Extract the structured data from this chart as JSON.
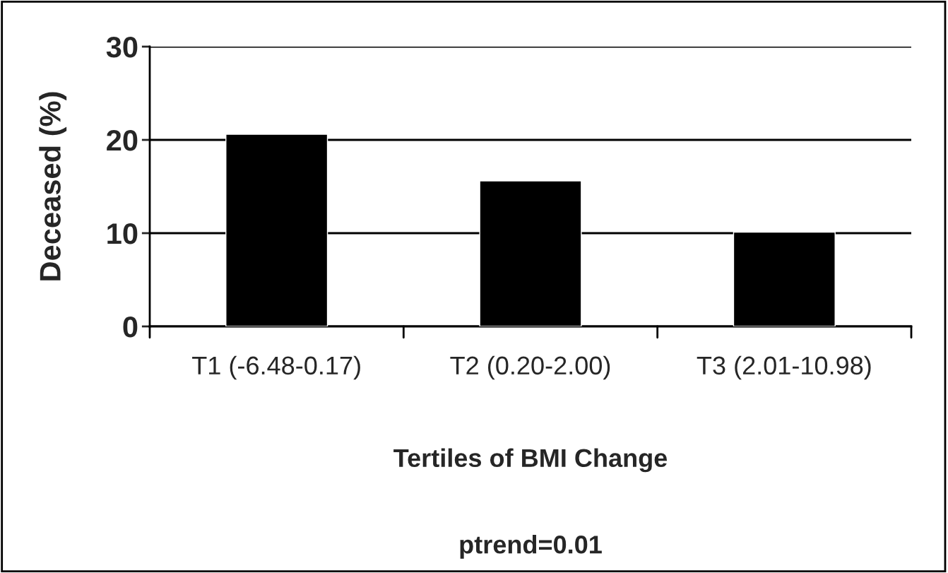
{
  "chart_data": {
    "type": "bar",
    "categories": [
      "T1 (-6.48-0.17)",
      "T2 (0.20-2.00)",
      "T3 (2.01-10.98)"
    ],
    "values": [
      20.6,
      15.6,
      10.1
    ],
    "color": "#000000",
    "ylabel": "Deceased (%)",
    "xlabel": "Tertiles of BMI Change",
    "annotations": [
      "ptrend=0.01"
    ],
    "ylim": [
      0,
      30
    ],
    "yticks": [
      0,
      10,
      20,
      30
    ],
    "grid": "y"
  }
}
